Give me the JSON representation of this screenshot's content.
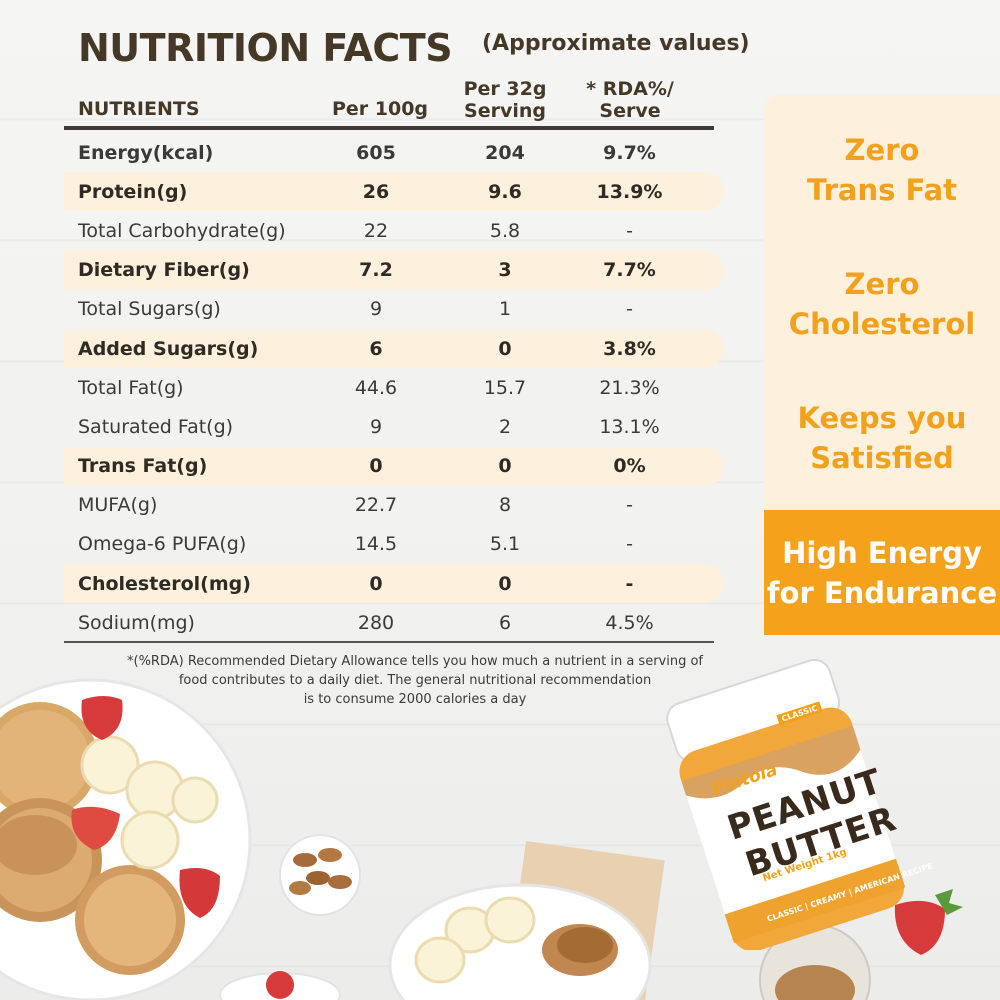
{
  "title": "NUTRITION FACTS",
  "subtitle": "(Approximate values)",
  "headers": {
    "nutrients": "NUTRIENTS",
    "per100": "Per 100g",
    "per32_line1": "Per 32g",
    "per32_line2": "Serving",
    "rda_line1": "* RDA%/",
    "rda_line2": "Serve"
  },
  "rows": [
    {
      "name": "Energy(kcal)",
      "per100": "605",
      "per32": "204",
      "rda": "9.7%",
      "highlight": false,
      "bold": true
    },
    {
      "name": "Protein(g)",
      "per100": "26",
      "per32": "9.6",
      "rda": "13.9%",
      "highlight": true,
      "bold": true
    },
    {
      "name": "Total Carbohydrate(g)",
      "per100": "22",
      "per32": "5.8",
      "rda": "-",
      "highlight": false,
      "bold": false
    },
    {
      "name": "Dietary Fiber(g)",
      "per100": "7.2",
      "per32": "3",
      "rda": "7.7%",
      "highlight": true,
      "bold": true
    },
    {
      "name": "Total Sugars(g)",
      "per100": "9",
      "per32": "1",
      "rda": "-",
      "highlight": false,
      "bold": false
    },
    {
      "name": "Added Sugars(g)",
      "per100": "6",
      "per32": "0",
      "rda": "3.8%",
      "highlight": true,
      "bold": true
    },
    {
      "name": "Total Fat(g)",
      "per100": "44.6",
      "per32": "15.7",
      "rda": "21.3%",
      "highlight": false,
      "bold": false
    },
    {
      "name": "Saturated Fat(g)",
      "per100": "9",
      "per32": "2",
      "rda": "13.1%",
      "highlight": false,
      "bold": false
    },
    {
      "name": "Trans Fat(g)",
      "per100": "0",
      "per32": "0",
      "rda": "0%",
      "highlight": true,
      "bold": true
    },
    {
      "name": "MUFA(g)",
      "per100": "22.7",
      "per32": "8",
      "rda": "-",
      "highlight": false,
      "bold": false
    },
    {
      "name": "Omega-6 PUFA(g)",
      "per100": "14.5",
      "per32": "5.1",
      "rda": "-",
      "highlight": false,
      "bold": false
    },
    {
      "name": "Cholesterol(mg)",
      "per100": "0",
      "per32": "0",
      "rda": "-",
      "highlight": true,
      "bold": true
    },
    {
      "name": "Sodium(mg)",
      "per100": "280",
      "per32": "6",
      "rda": "4.5%",
      "highlight": false,
      "bold": false
    }
  ],
  "footnote": {
    "line1": "*(%RDA) Recommended Dietary Allowance tells you how much a nutrient in a serving of",
    "line2": "food contributes to a daily diet. The general nutritional recommendation",
    "line3": "is to consume 2000 calories a day"
  },
  "claims": {
    "c1_line1": "Zero",
    "c1_line2": "Trans Fat",
    "c2_line1": "Zero",
    "c2_line2": "Cholesterol",
    "c3_line1": "Keeps you",
    "c3_line2": "Satisfied",
    "c4_line1": "High Energy",
    "c4_line2": "for Endurance"
  },
  "product": {
    "brand": "Pintola",
    "tag": "CLASSIC",
    "name_line1": "PEANUT",
    "name_line2": "BUTTER",
    "net_weight": "Net Weight 1kg",
    "variant": "CLASSIC | CREAMY | AMERICAN RECIPE"
  },
  "colors": {
    "accent": "#f4a21b",
    "claim_text": "#f2a11c",
    "highlight_row": "#fdf0dc",
    "heading": "#453826"
  }
}
